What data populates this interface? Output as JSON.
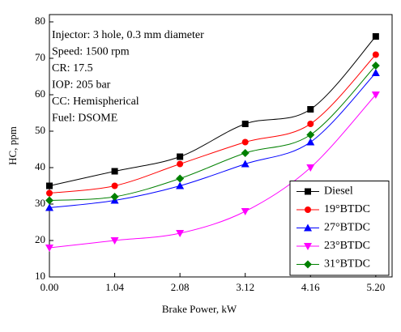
{
  "chart_data": {
    "type": "line",
    "x_label": "Brake Power, kW",
    "y_label": "HC, ppm",
    "annotations": [
      "Injector: 3 hole, 0.3 mm diameter",
      "Speed: 1500 rpm",
      "CR: 17.5",
      "IOP: 205 bar",
      "CC: Hemispherical",
      "Fuel: DSOME"
    ],
    "x": [
      0,
      1.04,
      2.08,
      3.12,
      4.16,
      5.2
    ],
    "xlim": [
      0,
      5.46
    ],
    "ylim": [
      10,
      82
    ],
    "xticks": [
      {
        "value": 0,
        "label": "0.00"
      },
      {
        "value": 1.04,
        "label": "1.04"
      },
      {
        "value": 2.08,
        "label": "2.08"
      },
      {
        "value": 3.12,
        "label": "3.12"
      },
      {
        "value": 4.16,
        "label": "4.16"
      },
      {
        "value": 5.2,
        "label": "5.20"
      }
    ],
    "yticks": [
      10,
      20,
      30,
      40,
      50,
      60,
      70,
      80
    ],
    "legend": "lower right",
    "series": [
      {
        "name": "Diesel",
        "color": "#000000",
        "marker": "square",
        "values": [
          35,
          39,
          43,
          52,
          56,
          76
        ]
      },
      {
        "name": "19°BTDC",
        "color": "#ff0000",
        "marker": "circle",
        "values": [
          33,
          35,
          41,
          47,
          52,
          71
        ]
      },
      {
        "name": "27°BTDC",
        "color": "#0000ff",
        "marker": "triangle-up",
        "values": [
          29,
          31,
          35,
          41,
          47,
          66
        ]
      },
      {
        "name": "23°BTDC",
        "color": "#ff00ff",
        "marker": "triangle-down",
        "values": [
          18,
          20,
          22,
          28,
          40,
          60
        ]
      },
      {
        "name": "31°BTDC",
        "color": "#008000",
        "marker": "diamond",
        "values": [
          31,
          32,
          37,
          44,
          49,
          68
        ]
      }
    ]
  }
}
